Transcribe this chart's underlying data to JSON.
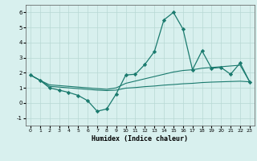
{
  "xlabel": "Humidex (Indice chaleur)",
  "bg_color": "#d8f0ee",
  "grid_color": "#b8d8d4",
  "line_color": "#1a7a6e",
  "x_values": [
    0,
    1,
    2,
    3,
    4,
    5,
    6,
    7,
    8,
    9,
    10,
    11,
    12,
    13,
    14,
    15,
    16,
    17,
    18,
    19,
    20,
    21,
    22,
    23
  ],
  "y_main": [
    1.85,
    1.5,
    1.0,
    0.85,
    0.7,
    0.5,
    0.15,
    -0.55,
    -0.4,
    0.6,
    1.85,
    1.9,
    2.55,
    3.4,
    5.5,
    6.0,
    4.9,
    2.2,
    3.45,
    2.3,
    2.35,
    1.9,
    2.65,
    1.4
  ],
  "y_line1": [
    1.85,
    1.5,
    1.2,
    1.15,
    1.1,
    1.05,
    1.0,
    0.95,
    0.9,
    1.0,
    1.3,
    1.45,
    1.6,
    1.75,
    1.9,
    2.05,
    2.15,
    2.2,
    2.3,
    2.35,
    2.4,
    2.45,
    2.5,
    1.4
  ],
  "y_line2": [
    1.85,
    1.5,
    1.1,
    1.05,
    1.0,
    0.95,
    0.9,
    0.85,
    0.82,
    0.85,
    0.98,
    1.02,
    1.08,
    1.12,
    1.18,
    1.22,
    1.27,
    1.3,
    1.35,
    1.38,
    1.4,
    1.42,
    1.44,
    1.4
  ],
  "ylim": [
    -1.5,
    6.5
  ],
  "yticks": [
    -1,
    0,
    1,
    2,
    3,
    4,
    5,
    6
  ],
  "xlim": [
    -0.5,
    23.5
  ],
  "xticks": [
    0,
    1,
    2,
    3,
    4,
    5,
    6,
    7,
    8,
    9,
    10,
    11,
    12,
    13,
    14,
    15,
    16,
    17,
    18,
    19,
    20,
    21,
    22,
    23
  ]
}
